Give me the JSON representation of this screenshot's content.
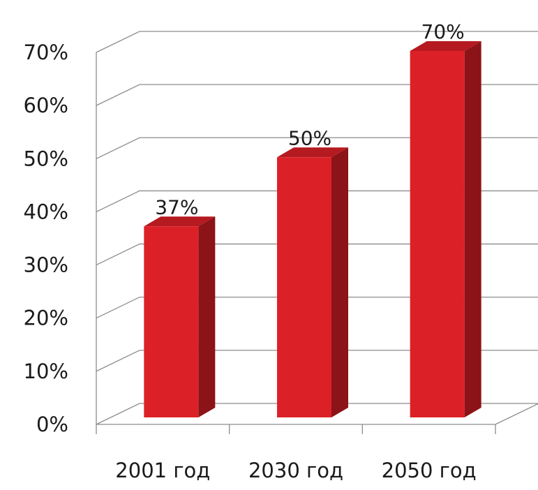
{
  "chart_data": {
    "type": "bar",
    "title": "",
    "xlabel": "",
    "ylabel": "",
    "categories": [
      "2001 год",
      "2030 год",
      "2050 год"
    ],
    "values": [
      37,
      50,
      70
    ],
    "data_labels": [
      "37%",
      "50%",
      "70%"
    ],
    "y_ticks": [
      "0%",
      "10%",
      "20%",
      "30%",
      "40%",
      "50%",
      "60%",
      "70%"
    ],
    "ylim": [
      0,
      70
    ],
    "grid": true,
    "legend": "none",
    "style": "3d-column",
    "colors": {
      "bar_front": "#dc2027",
      "bar_top": "#b51a20",
      "bar_side": "#8c1318",
      "grid": "#8c8c8c"
    }
  }
}
